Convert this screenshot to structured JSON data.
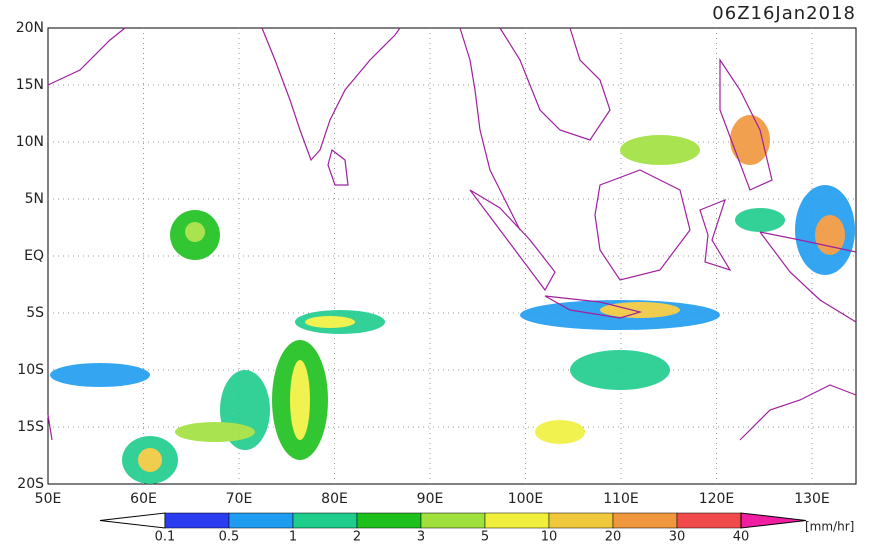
{
  "header": {
    "title": "06Z16Jan2018"
  },
  "map": {
    "lat_labels": [
      "20N",
      "15N",
      "10N",
      "5N",
      "EQ",
      "5S",
      "10S",
      "15S",
      "20S"
    ],
    "lon_labels": [
      "50E",
      "60E",
      "70E",
      "80E",
      "90E",
      "100E",
      "110E",
      "120E",
      "130E"
    ]
  },
  "colorbar": {
    "ticks": [
      0.1,
      0.5,
      1,
      2,
      3,
      5,
      10,
      20,
      30,
      40
    ],
    "colors": [
      "#ffffff",
      "#2a3cf0",
      "#1e9cf0",
      "#1ecc8c",
      "#1ec01e",
      "#a0e03c",
      "#f0f03c",
      "#f0c83c",
      "#f0963c",
      "#f04a4a",
      "#f01ea0"
    ],
    "unit": "[mm/hr]"
  }
}
